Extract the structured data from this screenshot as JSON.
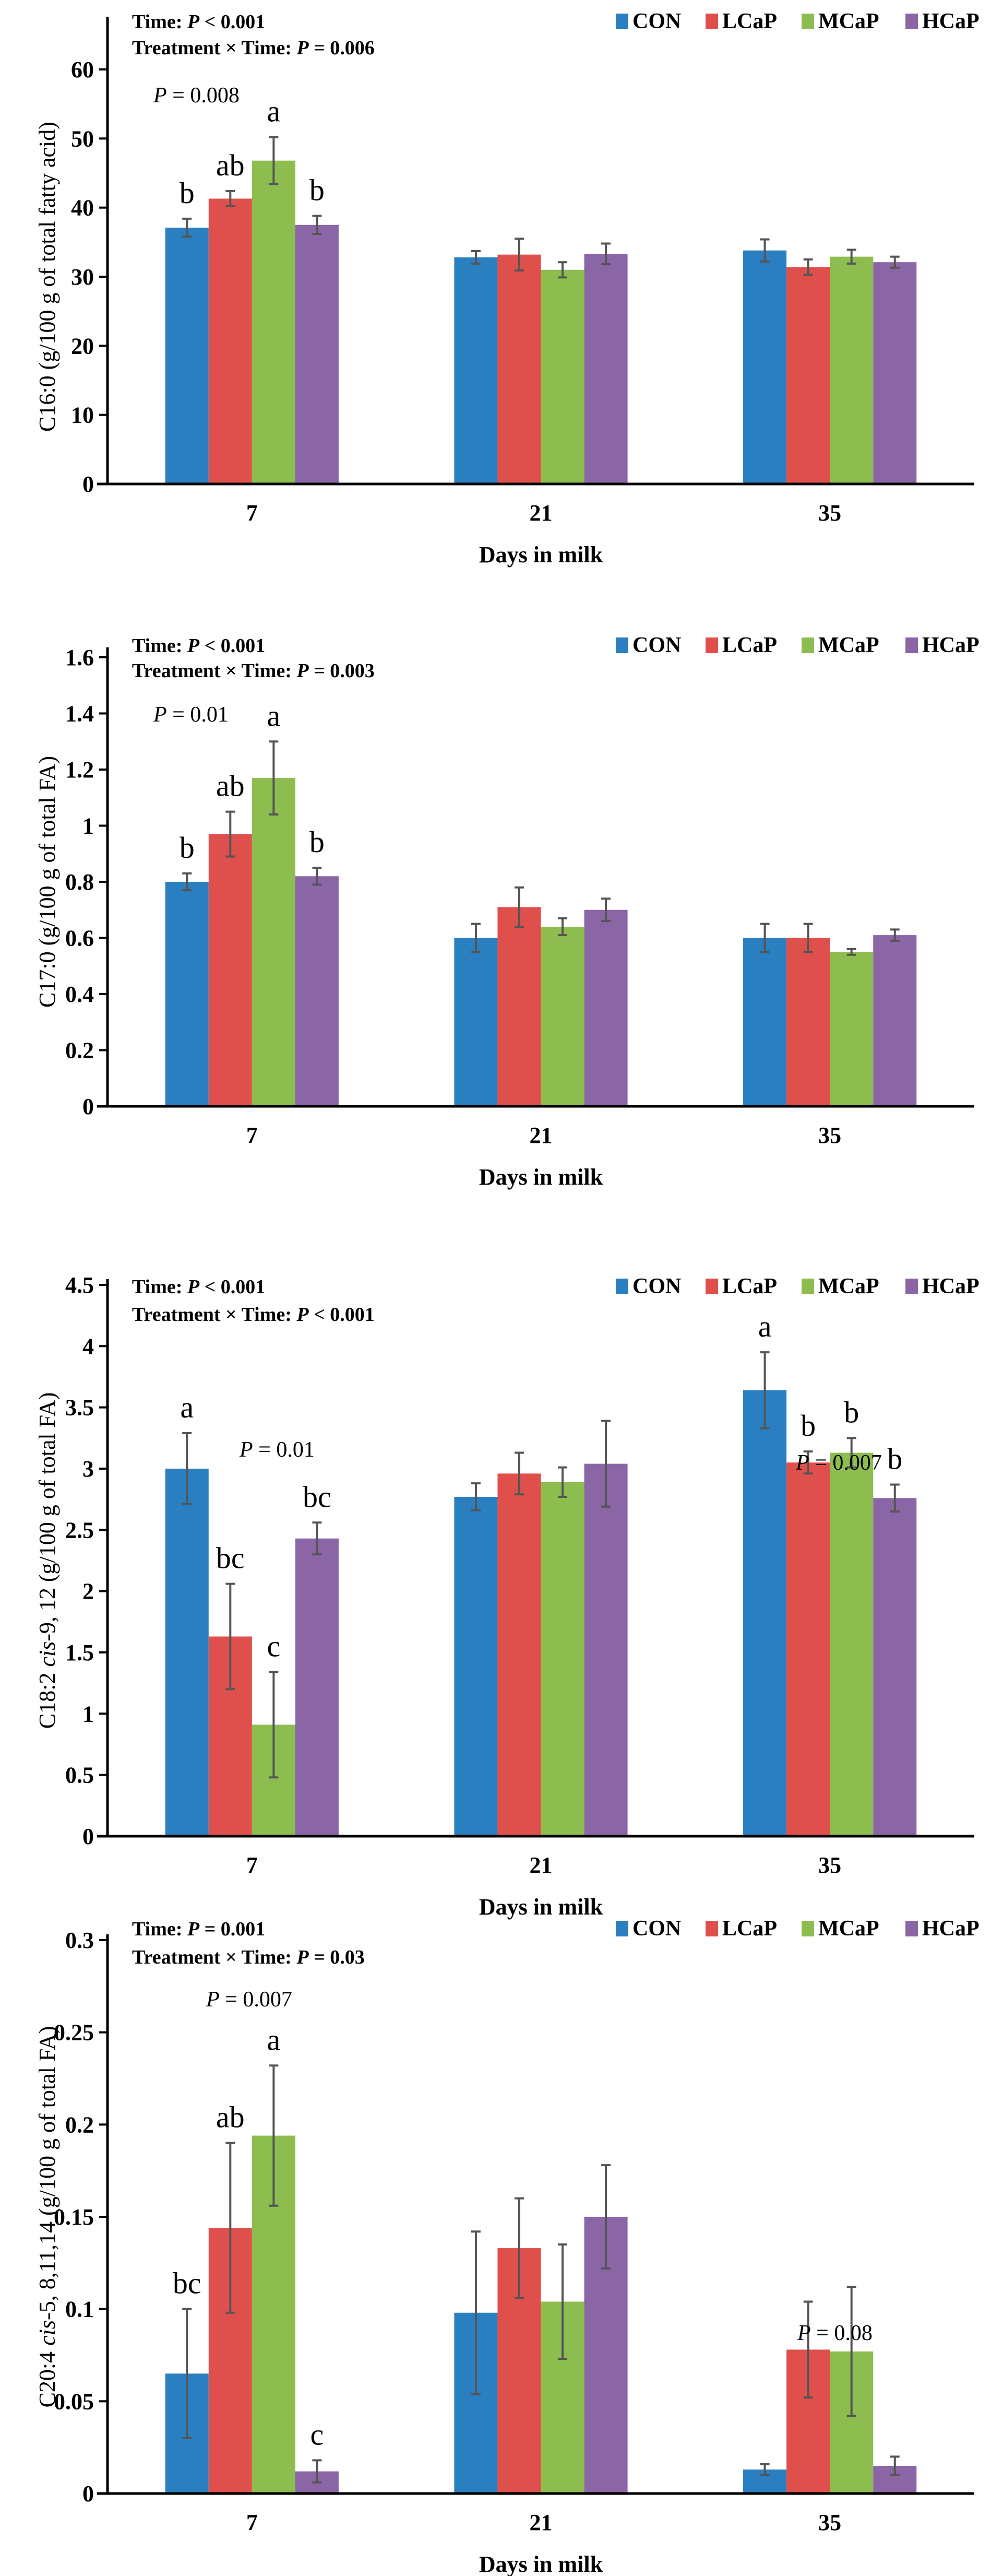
{
  "chart_data": [
    {
      "type": "bar",
      "categories": [
        "7",
        "21",
        "35"
      ],
      "xlabel": "Days in milk",
      "ylabel": "C16:0 (g/100 g of total fatty acid)",
      "ylim": [
        0,
        60
      ],
      "yticks": [
        0,
        10,
        20,
        30,
        40,
        50,
        60
      ],
      "grid": false,
      "legend_placement": "top-right",
      "annotations": [
        "Time: P < 0.001",
        "Treatment × Time: P = 0.006"
      ],
      "series": [
        {
          "name": "CON",
          "color": "#2a7fc1",
          "values": [
            37.1,
            32.8,
            33.8
          ],
          "errors": [
            1.3,
            0.9,
            1.6
          ]
        },
        {
          "name": "LCaP",
          "color": "#df504c",
          "values": [
            41.3,
            33.2,
            31.4
          ],
          "errors": [
            1.1,
            2.3,
            1.1
          ]
        },
        {
          "name": "MCaP",
          "color": "#8dbd4f",
          "values": [
            46.8,
            31.0,
            32.9
          ],
          "errors": [
            3.4,
            1.1,
            1.0
          ]
        },
        {
          "name": "HCaP",
          "color": "#8b66a6",
          "values": [
            37.5,
            33.3,
            32.1
          ],
          "errors": [
            1.3,
            1.5,
            0.8
          ]
        }
      ],
      "letters": [
        [
          "b",
          "ab",
          "a",
          "b"
        ],
        [],
        []
      ],
      "group_p": [
        "P = 0.008",
        "",
        ""
      ]
    },
    {
      "type": "bar",
      "categories": [
        "7",
        "21",
        "35"
      ],
      "xlabel": "Days in milk",
      "ylabel": "C17:0 (g/100 g of total FA)",
      "ylim": [
        0,
        1.6
      ],
      "yticks": [
        0,
        0.2,
        0.4,
        0.6,
        0.8,
        1,
        1.2,
        1.4,
        1.6
      ],
      "grid": false,
      "legend_placement": "top-right",
      "annotations": [
        "Time: P < 0.001",
        "Treatment × Time: P = 0.003"
      ],
      "series": [
        {
          "name": "CON",
          "color": "#2a7fc1",
          "values": [
            0.8,
            0.6,
            0.6
          ],
          "errors": [
            0.03,
            0.05,
            0.05
          ]
        },
        {
          "name": "LCaP",
          "color": "#df504c",
          "values": [
            0.97,
            0.71,
            0.6
          ],
          "errors": [
            0.08,
            0.07,
            0.05
          ]
        },
        {
          "name": "MCaP",
          "color": "#8dbd4f",
          "values": [
            1.17,
            0.64,
            0.55
          ],
          "errors": [
            0.13,
            0.03,
            0.01
          ]
        },
        {
          "name": "HCaP",
          "color": "#8b66a6",
          "values": [
            0.82,
            0.7,
            0.61
          ],
          "errors": [
            0.03,
            0.04,
            0.02
          ]
        }
      ],
      "letters": [
        [
          "b",
          "ab",
          "a",
          "b"
        ],
        [],
        []
      ],
      "group_p": [
        "P = 0.01",
        "",
        ""
      ]
    },
    {
      "type": "bar",
      "categories": [
        "7",
        "21",
        "35"
      ],
      "xlabel": "Days in milk",
      "ylabel": "C18:2 cis-9, 12 (g/100 g of total FA)",
      "ylim": [
        0,
        4.5
      ],
      "yticks": [
        0,
        0.5,
        1,
        1.5,
        2,
        2.5,
        3,
        3.5,
        4,
        4.5
      ],
      "grid": false,
      "legend_placement": "top-right",
      "annotations": [
        "Time: P < 0.001",
        "Treatment × Time: P < 0.001"
      ],
      "series": [
        {
          "name": "CON",
          "color": "#2a7fc1",
          "values": [
            3.0,
            2.77,
            3.64
          ],
          "errors": [
            0.29,
            0.11,
            0.31
          ]
        },
        {
          "name": "LCaP",
          "color": "#df504c",
          "values": [
            1.63,
            2.96,
            3.05
          ],
          "errors": [
            0.43,
            0.17,
            0.09
          ]
        },
        {
          "name": "MCaP",
          "color": "#8dbd4f",
          "values": [
            0.91,
            2.89,
            3.13
          ],
          "errors": [
            0.43,
            0.12,
            0.12
          ]
        },
        {
          "name": "HCaP",
          "color": "#8b66a6",
          "values": [
            2.43,
            3.04,
            2.76
          ],
          "errors": [
            0.13,
            0.35,
            0.11
          ]
        }
      ],
      "letters": [
        [
          "a",
          "bc",
          "c",
          "bc"
        ],
        [],
        [
          "a",
          "b",
          "b",
          "b"
        ]
      ],
      "group_p": [
        "P = 0.01",
        "",
        "P = 0.007"
      ]
    },
    {
      "type": "bar",
      "categories": [
        "7",
        "21",
        "35"
      ],
      "xlabel": "Days in milk",
      "ylabel": "C20:4 cis-5, 8,11,14 (g/100 g of total FA)",
      "ylim": [
        0,
        0.3
      ],
      "yticks": [
        0,
        0.05,
        0.1,
        0.15,
        0.2,
        0.25,
        0.3
      ],
      "grid": false,
      "legend_placement": "top-right",
      "annotations": [
        "Time: P = 0.001",
        "Treatment × Time: P = 0.03"
      ],
      "series": [
        {
          "name": "CON",
          "color": "#2a7fc1",
          "values": [
            0.065,
            0.098,
            0.013
          ],
          "errors": [
            0.035,
            0.044,
            0.003
          ]
        },
        {
          "name": "LCaP",
          "color": "#df504c",
          "values": [
            0.144,
            0.133,
            0.078
          ],
          "errors": [
            0.046,
            0.027,
            0.026
          ]
        },
        {
          "name": "MCaP",
          "color": "#8dbd4f",
          "values": [
            0.194,
            0.104,
            0.077
          ],
          "errors": [
            0.038,
            0.031,
            0.035
          ]
        },
        {
          "name": "HCaP",
          "color": "#8b66a6",
          "values": [
            0.012,
            0.15,
            0.015
          ],
          "errors": [
            0.006,
            0.028,
            0.005
          ]
        }
      ],
      "letters": [
        [
          "bc",
          "ab",
          "a",
          "c"
        ],
        [],
        []
      ],
      "group_p": [
        "P = 0.007",
        "",
        "P = 0.08"
      ]
    }
  ]
}
